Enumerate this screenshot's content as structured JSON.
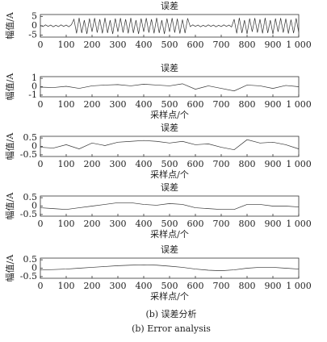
{
  "chart_data": [
    {
      "type": "line",
      "title": "误差",
      "ylabel": "幅值/A",
      "color": "#333333",
      "x": [
        0,
        10,
        20,
        30,
        40,
        50,
        60,
        70,
        80,
        90,
        100,
        110,
        120,
        130,
        140,
        150,
        160,
        170,
        180,
        190,
        200,
        210,
        220,
        230,
        240,
        250,
        260,
        270,
        280,
        290,
        300,
        310,
        320,
        330,
        340,
        350,
        360,
        370,
        380,
        390,
        400,
        410,
        420,
        430,
        440,
        450,
        460,
        470,
        480,
        490,
        500,
        510,
        520,
        530,
        540,
        550,
        560,
        570,
        580,
        590,
        600,
        610,
        620,
        630,
        640,
        650,
        660,
        670,
        680,
        690,
        700,
        710,
        720,
        730,
        740,
        750,
        760,
        770,
        780,
        790,
        800,
        810,
        820,
        830,
        840,
        850,
        860,
        870,
        880,
        890,
        900,
        910,
        920,
        930,
        940,
        950,
        960,
        970,
        980,
        990,
        1000
      ],
      "values": [
        0.3,
        -0.4,
        0.5,
        -0.3,
        0.4,
        -0.5,
        0.3,
        -0.4,
        0.5,
        -0.3,
        0.4,
        -0.5,
        0.6,
        3.5,
        -4,
        4.2,
        -3.8,
        3,
        -4.3,
        3.9,
        -3.2,
        4.1,
        -3.6,
        3.5,
        -4,
        4.2,
        -3.8,
        3,
        -4.3,
        3.9,
        -3.2,
        4.1,
        -3.6,
        3.5,
        -4,
        4.2,
        -3.8,
        3,
        -4.3,
        3.9,
        -3.2,
        4.1,
        -3.6,
        3.5,
        -4,
        4.2,
        -3.8,
        3,
        -4.3,
        3.9,
        -3.2,
        4.1,
        -3.6,
        3.8,
        -4.1,
        3.3,
        -3.9,
        4,
        -0.4,
        0.5,
        -0.3,
        0.4,
        -0.5,
        0.3,
        -0.4,
        0.5,
        -0.3,
        0.4,
        -0.5,
        0.3,
        -0.4,
        0.5,
        -0.3,
        0.4,
        -0.6,
        3.5,
        -4,
        4.2,
        -3.8,
        3,
        -4.3,
        3.9,
        -3.2,
        4.1,
        -3.6,
        3.5,
        -4,
        4.2,
        -3.8,
        3,
        -4.3,
        3.9,
        -3.2,
        4.1,
        -3.6,
        3.8,
        -4.1,
        3.3,
        -3.9,
        4,
        -3.5
      ],
      "xlim": [
        0,
        1000
      ],
      "ylim": [
        -6,
        6
      ],
      "xticks": [
        0,
        100,
        200,
        300,
        400,
        500,
        600,
        700,
        800,
        900,
        {
          "value": 1000,
          "label": "1 000"
        }
      ],
      "yticks": [
        5,
        0,
        -5
      ]
    },
    {
      "type": "line",
      "title": "误差",
      "xlabel": "采样点/个",
      "ylabel": "幅值/A",
      "color": "#333333",
      "x": [
        0,
        50,
        100,
        150,
        200,
        250,
        300,
        350,
        400,
        450,
        500,
        550,
        600,
        650,
        700,
        750,
        800,
        850,
        900,
        950,
        1000
      ],
      "values": [
        -0.05,
        -0.1,
        0.05,
        -0.2,
        0.1,
        0.2,
        0.25,
        0.1,
        0.3,
        0.2,
        0.1,
        0.35,
        -0.3,
        0.1,
        -0.2,
        -0.5,
        0.2,
        0.1,
        -0.2,
        0.15,
        0
      ],
      "xlim": [
        0,
        1000
      ],
      "ylim": [
        -1.2,
        1.2
      ],
      "xticks": [
        0,
        100,
        200,
        300,
        400,
        500,
        600,
        700,
        800,
        900,
        {
          "value": 1000,
          "label": "1 000"
        }
      ],
      "yticks": [
        1,
        0,
        -1
      ]
    },
    {
      "type": "line",
      "title": "误差",
      "xlabel": "采样点/个",
      "ylabel": "幅值/A",
      "color": "#333333",
      "x": [
        0,
        50,
        100,
        150,
        200,
        250,
        300,
        350,
        400,
        450,
        500,
        550,
        600,
        650,
        700,
        750,
        800,
        850,
        900,
        950,
        1000
      ],
      "values": [
        -0.05,
        -0.1,
        0.1,
        -0.15,
        0.2,
        0.05,
        0.25,
        0.3,
        0.35,
        0.3,
        0.2,
        0.3,
        0.1,
        0.15,
        -0.05,
        -0.2,
        0.4,
        0.2,
        0.25,
        0.1,
        -0.15
      ],
      "xlim": [
        0,
        1000
      ],
      "ylim": [
        -0.6,
        0.6
      ],
      "xticks": [
        0,
        100,
        200,
        300,
        400,
        500,
        600,
        700,
        800,
        900,
        {
          "value": 1000,
          "label": "1 000"
        }
      ],
      "yticks": [
        0.5,
        0,
        -0.5
      ]
    },
    {
      "type": "line",
      "title": "误差",
      "xlabel": "采样点/个",
      "ylabel": "幅值/A",
      "color": "#333333",
      "x": [
        0,
        50,
        100,
        150,
        200,
        250,
        300,
        350,
        400,
        450,
        500,
        550,
        600,
        650,
        700,
        750,
        800,
        850,
        900,
        950,
        1000
      ],
      "values": [
        -0.1,
        -0.15,
        -0.2,
        -0.1,
        0,
        0.1,
        0.2,
        0.2,
        0.1,
        0.05,
        0.15,
        0.1,
        -0.1,
        -0.15,
        -0.2,
        -0.2,
        0.1,
        0.1,
        0,
        0,
        -0.05
      ],
      "xlim": [
        0,
        1000
      ],
      "ylim": [
        -0.6,
        0.6
      ],
      "xticks": [
        0,
        100,
        200,
        300,
        400,
        500,
        600,
        700,
        800,
        900,
        {
          "value": 1000,
          "label": "1 000"
        }
      ],
      "yticks": [
        0.5,
        0,
        -0.5
      ]
    },
    {
      "type": "line",
      "title": "误差",
      "xlabel": "采样点/个",
      "ylabel": "幅值/A",
      "color": "#333333",
      "x": [
        0,
        50,
        100,
        150,
        200,
        250,
        300,
        350,
        400,
        450,
        500,
        550,
        600,
        650,
        700,
        750,
        800,
        850,
        900,
        950,
        1000
      ],
      "values": [
        -0.1,
        -0.08,
        -0.05,
        0,
        0.05,
        0.1,
        0.15,
        0.18,
        0.2,
        0.18,
        0.12,
        0.05,
        -0.05,
        -0.12,
        -0.15,
        -0.1,
        0,
        0.05,
        0.05,
        0,
        -0.05
      ],
      "xlim": [
        0,
        1000
      ],
      "ylim": [
        -0.6,
        0.6
      ],
      "xticks": [
        0,
        100,
        200,
        300,
        400,
        500,
        600,
        700,
        800,
        900,
        {
          "value": 1000,
          "label": "1 000"
        }
      ],
      "yticks": [
        0.5,
        0,
        -0.5
      ]
    }
  ],
  "captions": [
    "(b) 误差分析",
    "(b) Error analysis"
  ]
}
